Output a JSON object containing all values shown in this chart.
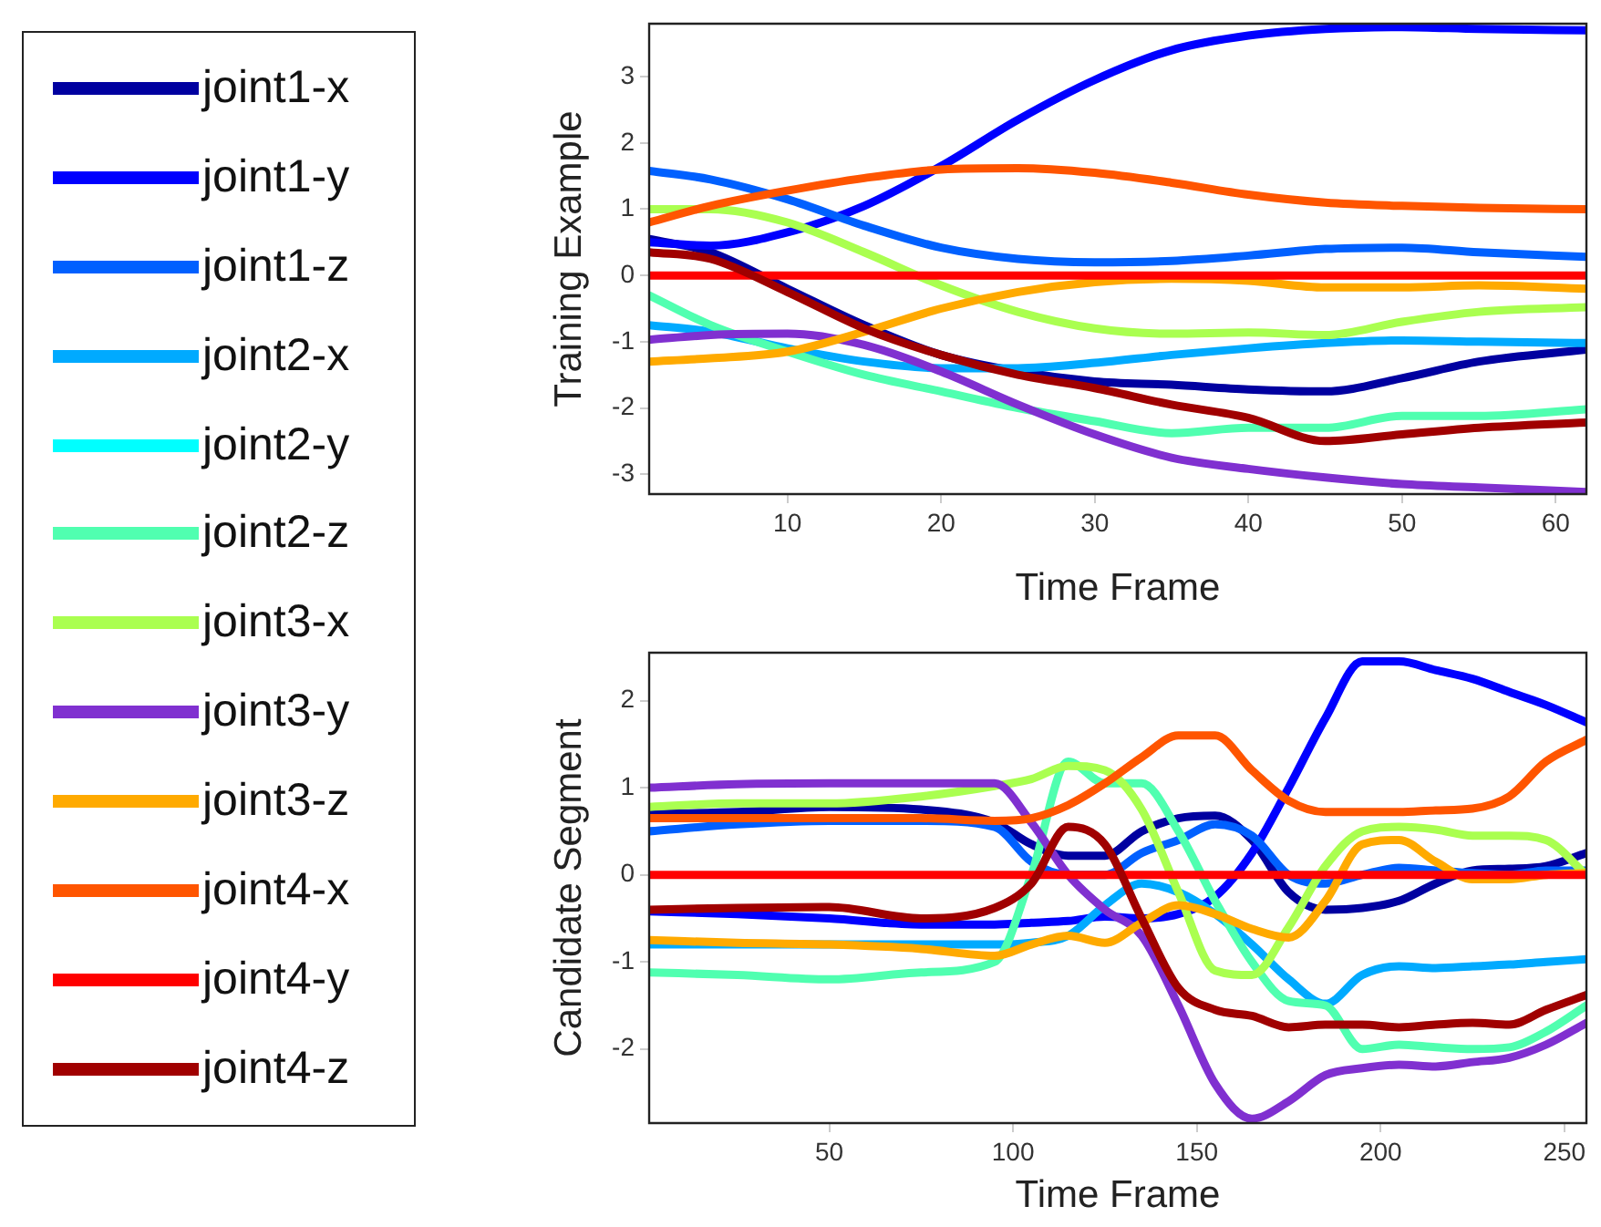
{
  "chart_data": [
    {
      "type": "line",
      "xlabel": "Time Frame",
      "ylabel": "Training Example",
      "legend": "left",
      "x": [
        1,
        5,
        10,
        15,
        20,
        25,
        30,
        35,
        40,
        45,
        50,
        55,
        62
      ],
      "xlim": [
        1,
        62
      ],
      "xticks": [
        10,
        20,
        30,
        40,
        50,
        60
      ],
      "ylim": [
        -3.3,
        3.8
      ],
      "yticks": [
        -3,
        -2,
        -1,
        0,
        1,
        2,
        3
      ],
      "series": [
        {
          "name": "joint1-x",
          "color": "#0000a0",
          "values": [
            0.55,
            0.35,
            -0.2,
            -0.75,
            -1.2,
            -1.45,
            -1.6,
            -1.65,
            -1.72,
            -1.75,
            -1.55,
            -1.3,
            -1.12
          ]
        },
        {
          "name": "joint1-y",
          "color": "#0000ff",
          "values": [
            0.5,
            0.45,
            0.65,
            1.05,
            1.65,
            2.35,
            2.95,
            3.4,
            3.62,
            3.72,
            3.75,
            3.72,
            3.7
          ]
        },
        {
          "name": "joint1-z",
          "color": "#0060ff",
          "values": [
            1.58,
            1.45,
            1.15,
            0.75,
            0.42,
            0.25,
            0.2,
            0.22,
            0.3,
            0.4,
            0.42,
            0.35,
            0.28
          ]
        },
        {
          "name": "joint2-x",
          "color": "#00aaff",
          "values": [
            -0.75,
            -0.85,
            -1.1,
            -1.3,
            -1.4,
            -1.4,
            -1.32,
            -1.2,
            -1.1,
            -1.02,
            -0.98,
            -1.0,
            -1.02
          ]
        },
        {
          "name": "joint2-y",
          "color": "#00ffff",
          "values": [
            null,
            null,
            null,
            null,
            null,
            null,
            null,
            null,
            null,
            null,
            null,
            null,
            null
          ]
        },
        {
          "name": "joint2-z",
          "color": "#50ffb0",
          "values": [
            -0.3,
            -0.75,
            -1.15,
            -1.5,
            -1.75,
            -2.0,
            -2.2,
            -2.38,
            -2.3,
            -2.3,
            -2.12,
            -2.12,
            -2.02
          ]
        },
        {
          "name": "joint3-x",
          "color": "#aaff50",
          "values": [
            1.0,
            1.0,
            0.8,
            0.35,
            -0.15,
            -0.55,
            -0.8,
            -0.88,
            -0.86,
            -0.9,
            -0.7,
            -0.55,
            -0.48
          ]
        },
        {
          "name": "joint3-y",
          "color": "#8030d0",
          "values": [
            -0.97,
            -0.9,
            -0.88,
            -1.05,
            -1.45,
            -1.95,
            -2.4,
            -2.75,
            -2.92,
            -3.05,
            -3.15,
            -3.2,
            -3.27
          ]
        },
        {
          "name": "joint3-z",
          "color": "#ffaa00",
          "values": [
            -1.3,
            -1.25,
            -1.15,
            -0.85,
            -0.5,
            -0.25,
            -0.1,
            -0.05,
            -0.08,
            -0.18,
            -0.18,
            -0.15,
            -0.2
          ]
        },
        {
          "name": "joint4-x",
          "color": "#ff5500",
          "values": [
            0.8,
            1.05,
            1.28,
            1.47,
            1.6,
            1.62,
            1.55,
            1.4,
            1.22,
            1.1,
            1.05,
            1.02,
            1.0
          ]
        },
        {
          "name": "joint4-y",
          "color": "#ff0000",
          "values": [
            0,
            0,
            0,
            0,
            0,
            0,
            0,
            0,
            0,
            0,
            0,
            0,
            0
          ]
        },
        {
          "name": "joint4-z",
          "color": "#a00000",
          "values": [
            0.35,
            0.25,
            -0.25,
            -0.8,
            -1.2,
            -1.5,
            -1.7,
            -1.95,
            -2.15,
            -2.5,
            -2.4,
            -2.3,
            -2.22
          ]
        }
      ]
    },
    {
      "type": "line",
      "xlabel": "Time Frame",
      "ylabel": "Candidate Segment",
      "x": [
        1,
        25,
        50,
        75,
        95,
        105,
        115,
        125,
        135,
        145,
        155,
        165,
        175,
        185,
        195,
        205,
        215,
        225,
        235,
        245,
        256
      ],
      "xlim": [
        1,
        256
      ],
      "xticks": [
        50,
        100,
        150,
        200,
        250
      ],
      "ylim": [
        -2.85,
        2.55
      ],
      "yticks": [
        -2,
        -1,
        0,
        1,
        2
      ],
      "series": [
        {
          "color": "#0000a0",
          "values": [
            0.7,
            0.72,
            0.78,
            0.75,
            0.6,
            0.35,
            0.22,
            0.22,
            0.5,
            0.65,
            0.68,
            0.4,
            -0.2,
            -0.4,
            -0.38,
            -0.3,
            -0.1,
            0.05,
            0.07,
            0.1,
            0.25
          ]
        },
        {
          "color": "#0000ff",
          "values": [
            -0.42,
            -0.45,
            -0.5,
            -0.57,
            -0.57,
            -0.55,
            -0.53,
            -0.48,
            -0.5,
            -0.45,
            -0.25,
            0.25,
            1.0,
            1.8,
            2.45,
            2.45,
            2.35,
            2.25,
            2.1,
            1.95,
            1.75
          ]
        },
        {
          "color": "#0060ff",
          "values": [
            0.5,
            0.58,
            0.62,
            0.62,
            0.55,
            0.15,
            0.0,
            0.0,
            0.25,
            0.4,
            0.58,
            0.45,
            0.0,
            -0.1,
            0.0,
            0.08,
            0.05,
            0.02,
            0.0,
            0.05,
            0.05
          ]
        },
        {
          "color": "#00aaff",
          "values": [
            -0.8,
            -0.8,
            -0.8,
            -0.8,
            -0.8,
            -0.78,
            -0.7,
            -0.35,
            -0.1,
            -0.2,
            -0.45,
            -0.8,
            -1.2,
            -1.48,
            -1.15,
            -1.05,
            -1.07,
            -1.05,
            -1.03,
            -1.0,
            -0.97
          ]
        },
        {
          "color": "#00ffff",
          "values": [
            null,
            null,
            null,
            null,
            null,
            null,
            null,
            null,
            null,
            null,
            null,
            null,
            null,
            null,
            null,
            null,
            null,
            null,
            null,
            null,
            null
          ]
        },
        {
          "color": "#50ffb0",
          "values": [
            -1.12,
            -1.15,
            -1.2,
            -1.12,
            -1.0,
            0.0,
            1.3,
            1.05,
            1.05,
            0.5,
            -0.3,
            -1.0,
            -1.45,
            -1.5,
            -2.0,
            -1.95,
            -1.98,
            -2.0,
            -1.98,
            -1.8,
            -1.5
          ]
        },
        {
          "color": "#aaff50",
          "values": [
            0.78,
            0.82,
            0.82,
            0.9,
            1.02,
            1.1,
            1.25,
            1.2,
            0.75,
            -0.2,
            -1.1,
            -1.15,
            -0.6,
            0.1,
            0.5,
            0.55,
            0.52,
            0.45,
            0.45,
            0.4,
            0.0
          ]
        },
        {
          "color": "#8030d0",
          "values": [
            1.0,
            1.04,
            1.05,
            1.05,
            1.05,
            0.6,
            0.0,
            -0.4,
            -0.7,
            -1.5,
            -2.4,
            -2.8,
            -2.6,
            -2.3,
            -2.22,
            -2.18,
            -2.2,
            -2.15,
            -2.1,
            -1.95,
            -1.7
          ]
        },
        {
          "color": "#ffaa00",
          "values": [
            -0.75,
            -0.78,
            -0.8,
            -0.85,
            -0.93,
            -0.8,
            -0.7,
            -0.78,
            -0.55,
            -0.35,
            -0.45,
            -0.62,
            -0.72,
            -0.3,
            0.35,
            0.4,
            0.15,
            -0.05,
            -0.05,
            0.0,
            0.02
          ]
        },
        {
          "color": "#ff5500",
          "values": [
            0.65,
            0.65,
            0.65,
            0.65,
            0.62,
            0.65,
            0.8,
            1.05,
            1.35,
            1.6,
            1.6,
            1.2,
            0.85,
            0.72,
            0.72,
            0.72,
            0.74,
            0.76,
            0.9,
            1.3,
            1.55
          ]
        },
        {
          "color": "#ff0000",
          "values": [
            0,
            0,
            0,
            0,
            0,
            0,
            0,
            0,
            0,
            0,
            0,
            0,
            0,
            0,
            0,
            0,
            0,
            0,
            0,
            0,
            0
          ]
        },
        {
          "color": "#a00000",
          "values": [
            -0.4,
            -0.38,
            -0.37,
            -0.5,
            -0.38,
            -0.1,
            0.55,
            0.35,
            -0.5,
            -1.3,
            -1.55,
            -1.62,
            -1.75,
            -1.72,
            -1.72,
            -1.75,
            -1.72,
            -1.7,
            -1.72,
            -1.55,
            -1.38
          ]
        }
      ]
    }
  ]
}
